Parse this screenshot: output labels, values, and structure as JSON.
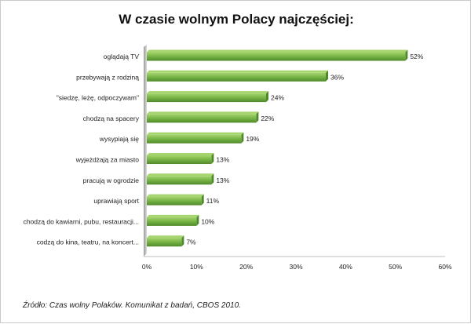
{
  "chart_data": {
    "type": "bar",
    "orientation": "horizontal",
    "title": "W czasie wolnym Polacy najczęściej:",
    "categories": [
      "oglądają TV",
      "przebywają z rodziną",
      "\"siedzę, leżę, odpoczywam\"",
      "chodzą na spacery",
      "wysypiają się",
      "wyjeżdżają za miasto",
      "pracują w ogrodzie",
      "uprawiają sport",
      "chodzą do kawiarni, pubu, restauracji...",
      "codzą do kina, teatru, na koncert..."
    ],
    "values": [
      52,
      36,
      24,
      22,
      19,
      13,
      13,
      11,
      10,
      7
    ],
    "value_labels": [
      "52%",
      "36%",
      "24%",
      "22%",
      "19%",
      "13%",
      "13%",
      "11%",
      "10%",
      "7%"
    ],
    "xlim": [
      0,
      60
    ],
    "x_ticks": [
      0,
      10,
      20,
      30,
      40,
      50,
      60
    ],
    "x_tick_labels": [
      "0%",
      "10%",
      "20%",
      "30%",
      "40%",
      "50%",
      "60%"
    ],
    "xlabel": "",
    "ylabel": "",
    "grid": false,
    "legend": "none",
    "bar_color": "#7ab648",
    "bar_color_light": "#a6d46e",
    "bar_color_dark": "#4f8a2a"
  },
  "footnote": "Źródło: Czas wolny Polaków. Komunikat z badań, CBOS 2010."
}
